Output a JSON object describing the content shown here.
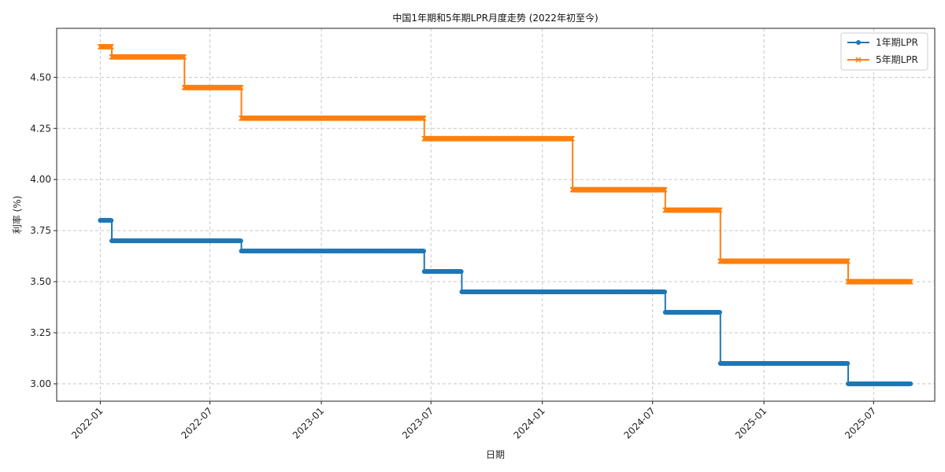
{
  "chart_data": {
    "type": "line",
    "title": "中国1年期和5年期LPR月度走势 (2022年初至今)",
    "xlabel": "日期",
    "ylabel": "利率 (%)",
    "ylim": [
      2.915,
      4.74
    ],
    "xlim": [
      "2021-10-21",
      "2025-10-10"
    ],
    "grid": true,
    "legend_position": "top-right",
    "y_ticks": [
      3.0,
      3.25,
      3.5,
      3.75,
      4.0,
      4.25,
      4.5
    ],
    "x_ticks": [
      "2022-01",
      "2022-07",
      "2023-01",
      "2023-07",
      "2024-01",
      "2024-07",
      "2025-01",
      "2025-07"
    ],
    "series": [
      {
        "name": "1年期LPR",
        "color": "#1f77b4",
        "marker": "circle",
        "x": [
          "2022-01-01",
          "2022-01-20",
          "2022-08-22",
          "2023-06-20",
          "2023-08-21",
          "2024-07-22",
          "2024-10-21",
          "2025-05-20",
          "2025-08-31"
        ],
        "values": [
          3.8,
          3.7,
          3.65,
          3.55,
          3.45,
          3.35,
          3.1,
          3.0,
          3.0
        ]
      },
      {
        "name": "5年期LPR",
        "color": "#ff7f0e",
        "marker": "x",
        "x": [
          "2022-01-01",
          "2022-01-20",
          "2022-05-20",
          "2022-08-22",
          "2023-06-20",
          "2024-02-20",
          "2024-07-22",
          "2024-10-21",
          "2025-05-20",
          "2025-08-31"
        ],
        "values": [
          4.65,
          4.6,
          4.45,
          4.3,
          4.2,
          3.95,
          3.85,
          3.6,
          3.5,
          3.5
        ]
      }
    ]
  }
}
